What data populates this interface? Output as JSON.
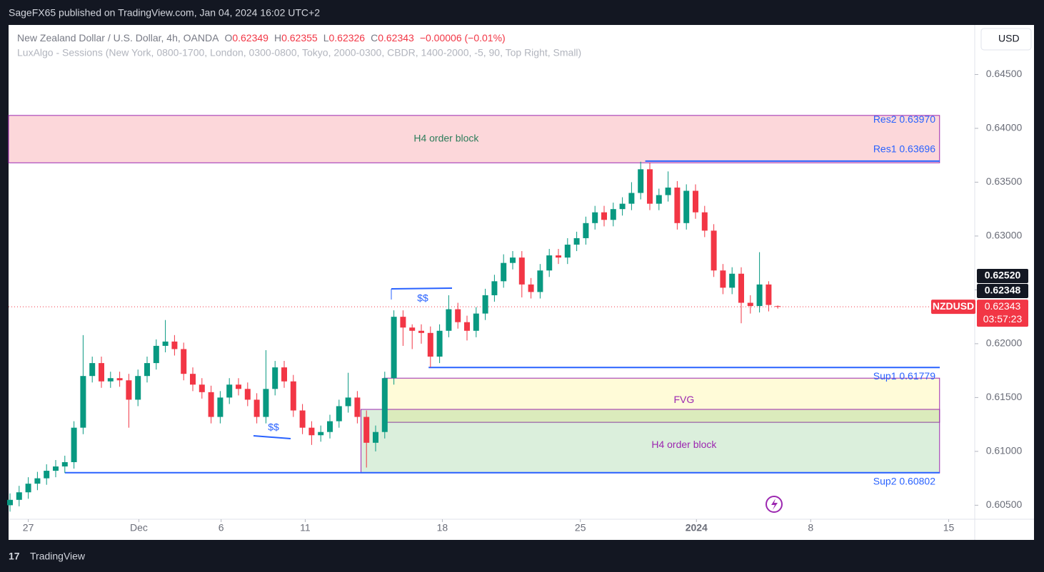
{
  "chart_data": {
    "type": "candlestick",
    "publisher": "SageFX65 published on TradingView.com, Jan 04, 2024 16:02 UTC+2",
    "brand": "TradingView",
    "currency_button": "USD",
    "header": {
      "symbol": "New Zealand Dollar / U.S. Dollar, 4h, OANDA",
      "ohlc": [
        {
          "key": "O",
          "value": "0.62349"
        },
        {
          "key": "H",
          "value": "0.62355"
        },
        {
          "key": "L",
          "value": "0.62326"
        },
        {
          "key": "C",
          "value": "0.62343"
        }
      ],
      "change": "−0.00006 (−0.01%)",
      "indicator": "LuxAlgo - Sessions (New York, 0800-1700, London, 0300-0800, Tokyo, 2000-0300, CBDR, 1400-2000, -5, 90, Top Right, Small)"
    },
    "up_color": "#089981",
    "down_color": "#f23645",
    "x": [
      0,
      1,
      2,
      3,
      4,
      5,
      6,
      7,
      8,
      9,
      10,
      11,
      12,
      13,
      14,
      15,
      16,
      17,
      18,
      19,
      20,
      21,
      22,
      23,
      24,
      25,
      26,
      27,
      28,
      29,
      30,
      31,
      32,
      33,
      34,
      35,
      36,
      37,
      38,
      39,
      40,
      41,
      42,
      43,
      44,
      45,
      46,
      47,
      48,
      49,
      50,
      51,
      52,
      53,
      54,
      55,
      56,
      57,
      58,
      59,
      60,
      61,
      62,
      63,
      64,
      65,
      66,
      67,
      68,
      69,
      70,
      71,
      72,
      73,
      74,
      75,
      76,
      77,
      78,
      79,
      80,
      81,
      82,
      83,
      84
    ],
    "open": [
      0.605,
      0.6055,
      0.6062,
      0.607,
      0.6075,
      0.6082,
      0.6086,
      0.609,
      0.6122,
      0.617,
      0.6182,
      0.6165,
      0.6168,
      0.6166,
      0.6148,
      0.617,
      0.6182,
      0.6198,
      0.6202,
      0.6195,
      0.6172,
      0.6162,
      0.6155,
      0.6132,
      0.615,
      0.6162,
      0.6158,
      0.6148,
      0.6132,
      0.6158,
      0.6178,
      0.6165,
      0.6138,
      0.6122,
      0.6115,
      0.6118,
      0.6128,
      0.6142,
      0.615,
      0.6132,
      0.6108,
      0.6118,
      0.6168,
      0.6225,
      0.6215,
      0.6212,
      0.621,
      0.6188,
      0.6212,
      0.6232,
      0.622,
      0.6212,
      0.6228,
      0.6245,
      0.6258,
      0.6275,
      0.628,
      0.6255,
      0.6248,
      0.6268,
      0.6282,
      0.628,
      0.6292,
      0.6298,
      0.6312,
      0.6322,
      0.6315,
      0.6325,
      0.633,
      0.634,
      0.6362,
      0.633,
      0.6338,
      0.6345,
      0.6312,
      0.6342,
      0.6322,
      0.6305,
      0.6268,
      0.6252,
      0.6265,
      0.6238,
      0.6235,
      0.6255,
      0.62349
    ],
    "high": [
      0.6061,
      0.6068,
      0.6076,
      0.6081,
      0.6088,
      0.6092,
      0.6096,
      0.6128,
      0.6208,
      0.6188,
      0.6188,
      0.6174,
      0.6174,
      0.6172,
      0.6176,
      0.6188,
      0.6204,
      0.6222,
      0.6208,
      0.6201,
      0.6178,
      0.6168,
      0.6161,
      0.6156,
      0.6168,
      0.6168,
      0.6164,
      0.6154,
      0.6194,
      0.6184,
      0.6184,
      0.6171,
      0.6144,
      0.6128,
      0.6124,
      0.6134,
      0.6148,
      0.6173,
      0.6156,
      0.6138,
      0.6124,
      0.6174,
      0.6231,
      0.6231,
      0.6218,
      0.6218,
      0.6216,
      0.6218,
      0.6245,
      0.6238,
      0.6226,
      0.6234,
      0.6251,
      0.6264,
      0.6283,
      0.6286,
      0.6286,
      0.6261,
      0.6274,
      0.6288,
      0.6288,
      0.6298,
      0.6304,
      0.6318,
      0.6328,
      0.6328,
      0.6331,
      0.6336,
      0.635,
      0.6369,
      0.6368,
      0.6344,
      0.636,
      0.6351,
      0.6348,
      0.6348,
      0.6328,
      0.6311,
      0.6274,
      0.6271,
      0.6271,
      0.6245,
      0.6285,
      0.6258,
      0.62355
    ],
    "low": [
      0.6044,
      0.6049,
      0.6056,
      0.6064,
      0.6069,
      0.6076,
      0.608,
      0.6084,
      0.6116,
      0.6164,
      0.6159,
      0.6159,
      0.616,
      0.6122,
      0.6142,
      0.6164,
      0.6176,
      0.6192,
      0.6189,
      0.6166,
      0.6156,
      0.6149,
      0.6126,
      0.6126,
      0.6144,
      0.6152,
      0.6142,
      0.6126,
      0.6126,
      0.6152,
      0.6159,
      0.6132,
      0.6116,
      0.6106,
      0.6109,
      0.6112,
      0.6122,
      0.6136,
      0.6126,
      0.6085,
      0.61,
      0.6112,
      0.6162,
      0.6198,
      0.6195,
      0.62,
      0.6178,
      0.6182,
      0.6206,
      0.6214,
      0.6203,
      0.6206,
      0.6222,
      0.6239,
      0.6252,
      0.6269,
      0.6243,
      0.6242,
      0.6242,
      0.6262,
      0.6274,
      0.6274,
      0.6286,
      0.6292,
      0.6306,
      0.6309,
      0.6309,
      0.6319,
      0.6324,
      0.6334,
      0.6324,
      0.6324,
      0.6332,
      0.6306,
      0.6306,
      0.6316,
      0.6299,
      0.6262,
      0.6246,
      0.6246,
      0.6219,
      0.6228,
      0.6229,
      0.623,
      0.62326
    ],
    "close": [
      0.6055,
      0.6062,
      0.607,
      0.6075,
      0.6082,
      0.6086,
      0.609,
      0.6122,
      0.617,
      0.6182,
      0.6165,
      0.6168,
      0.6166,
      0.6148,
      0.617,
      0.6182,
      0.6198,
      0.6202,
      0.6195,
      0.6172,
      0.6162,
      0.6155,
      0.6132,
      0.615,
      0.6162,
      0.6158,
      0.6148,
      0.6132,
      0.6158,
      0.6178,
      0.6165,
      0.6138,
      0.6122,
      0.6115,
      0.6118,
      0.6128,
      0.6142,
      0.615,
      0.6132,
      0.6108,
      0.6118,
      0.6168,
      0.6225,
      0.6215,
      0.6212,
      0.621,
      0.6188,
      0.6212,
      0.6232,
      0.622,
      0.6212,
      0.6228,
      0.6245,
      0.6258,
      0.6275,
      0.628,
      0.6255,
      0.6248,
      0.6268,
      0.6282,
      0.628,
      0.6292,
      0.6298,
      0.6312,
      0.6322,
      0.6315,
      0.6325,
      0.633,
      0.634,
      0.6362,
      0.633,
      0.6338,
      0.6345,
      0.6312,
      0.6342,
      0.6322,
      0.6305,
      0.6268,
      0.6252,
      0.6265,
      0.6238,
      0.6235,
      0.6255,
      0.6236,
      0.62343
    ],
    "xlim": [
      -0.2,
      105.5
    ],
    "ylim": [
      0.6037,
      0.6496
    ],
    "xticks": [
      {
        "value": 2.0,
        "label": "27"
      },
      {
        "value": 14.1,
        "label": "Dec"
      },
      {
        "value": 23.1,
        "label": "6"
      },
      {
        "value": 32.3,
        "label": "11"
      },
      {
        "value": 47.3,
        "label": "18"
      },
      {
        "value": 62.4,
        "label": "25"
      },
      {
        "value": 75.1,
        "label": "2024"
      },
      {
        "value": 87.6,
        "label": "8"
      },
      {
        "value": 102.7,
        "label": "15"
      }
    ],
    "yticks": [
      {
        "value": 0.645,
        "label": "0.64500"
      },
      {
        "value": 0.64,
        "label": "0.64000"
      },
      {
        "value": 0.635,
        "label": "0.63500"
      },
      {
        "value": 0.63,
        "label": "0.63000"
      },
      {
        "value": 0.625,
        "label": "0.62500"
      },
      {
        "value": 0.62,
        "label": "0.62000"
      },
      {
        "value": 0.615,
        "label": "0.61500"
      },
      {
        "value": 0.61,
        "label": "0.61000"
      },
      {
        "value": 0.605,
        "label": "0.60500"
      }
    ],
    "zones": [
      {
        "label": "H4 order block",
        "top": 0.6412,
        "bottom": 0.6368,
        "from": -0.2,
        "to": 101.7,
        "color": "#f23645",
        "text_color": "#2e7d5b"
      },
      {
        "label": "FVG",
        "top": 0.6168,
        "bottom": 0.6127,
        "from": 40.9,
        "to": 101.7,
        "color": "#ffeb3b",
        "text_color": "#9c27b0"
      },
      {
        "label": "H4 order block",
        "top": 0.6139,
        "bottom": 0.608,
        "from": 38.4,
        "to": 101.7,
        "color": "#4caf50",
        "text_color": "#9c27b0"
      }
    ],
    "levels": [
      {
        "label": "Res2 0.63970",
        "value": 0.6397
      },
      {
        "label": "Res1 0.63696",
        "value": 0.63696,
        "from": 69.5
      },
      {
        "label": "Sup1 0.61779",
        "value": 0.61779,
        "from": 45.8
      },
      {
        "label": "Sup2 0.60802",
        "value": 0.60802,
        "from": 6.0
      }
    ],
    "annotations": [
      {
        "text": "$$"
      },
      {
        "text": "$$"
      }
    ],
    "last": 0.62343,
    "symbol_tag": "NZDUSD",
    "countdown": "03:57:23",
    "price_tags": [
      "0.62520",
      "0.62348"
    ]
  }
}
